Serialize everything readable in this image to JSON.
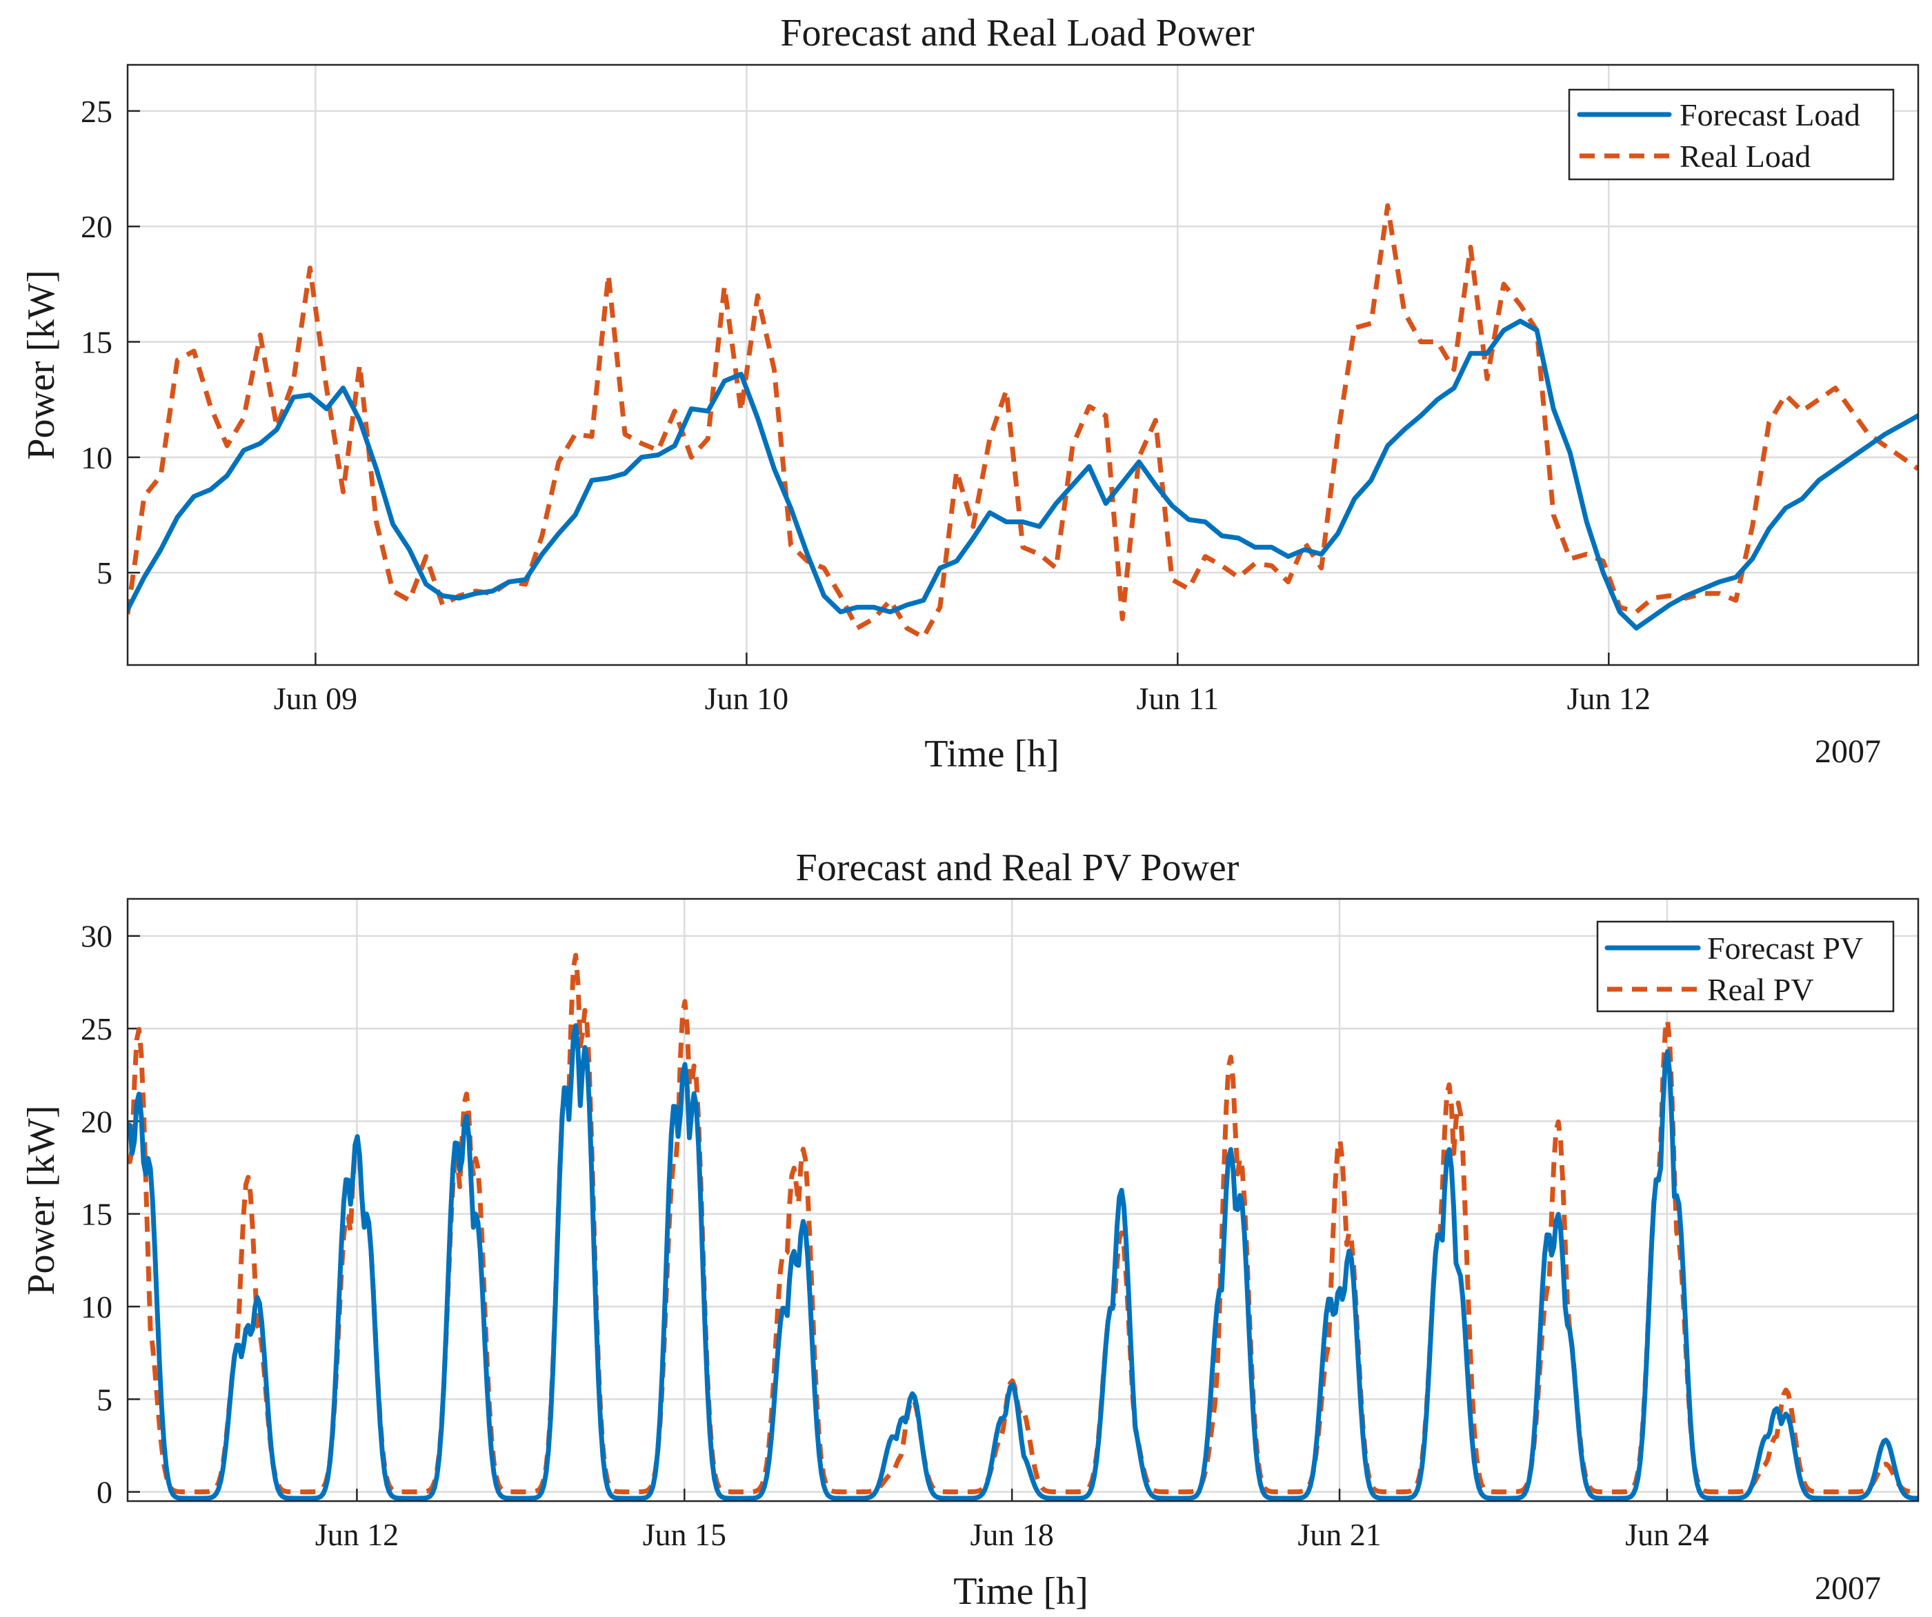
{
  "colors": {
    "forecast": "#0072BD",
    "real": "#D95319"
  },
  "chart_data": [
    {
      "type": "line",
      "title": "Forecast and Real Load Power",
      "xlabel": "Time [h]",
      "ylabel": "Power [kW]",
      "year_label": "2007",
      "xlim": [
        -17,
        145
      ],
      "ylim": [
        1,
        27
      ],
      "x_unit": "hours from Jun 09 00:00",
      "x_ticks": [
        0,
        39,
        78,
        117
      ],
      "x_tick_labels": [
        "Jun 09",
        "Jun 10",
        "Jun 11",
        "Jun 12"
      ],
      "y_ticks": [
        5,
        10,
        15,
        20,
        25
      ],
      "y_tick_labels": [
        "5",
        "10",
        "15",
        "20",
        "25"
      ],
      "grid": true,
      "legend": {
        "position": "top-right",
        "entries": [
          "Forecast Load",
          "Real Load"
        ]
      },
      "series": [
        {
          "name": "Forecast Load",
          "style": "solid",
          "x": [
            -17,
            -15.5,
            -14,
            -12.5,
            -11,
            -9.5,
            -8,
            -6.5,
            -5,
            -3.5,
            -2,
            -0.5,
            1,
            2.5,
            4,
            5.5,
            7,
            8.5,
            10,
            11.5,
            13,
            14.5,
            16,
            17.5,
            19,
            20.5,
            22,
            23.5,
            25,
            26.5,
            28,
            29.5,
            31,
            32.5,
            34,
            35.5,
            37,
            38.5,
            40,
            41.5,
            43,
            44.5,
            46,
            47.5,
            49,
            50.5,
            52,
            53.5,
            55,
            56.5,
            58,
            59.5,
            61,
            62.5,
            64,
            65.5,
            67,
            68.5,
            70,
            71.5,
            73,
            74.5,
            76,
            77.5,
            79,
            80.5,
            82,
            83.5,
            85,
            86.5,
            88,
            89.5,
            91,
            92.5,
            94,
            95.5,
            97,
            98.5,
            100,
            101.5,
            103,
            104.5,
            106,
            107.5,
            109,
            110.5,
            112,
            113.5,
            115,
            116.5,
            118,
            119.5,
            121,
            122.5,
            124,
            125.5,
            127,
            128.5,
            130,
            131.5,
            133,
            134.5,
            136,
            137.5,
            139,
            140.5,
            142,
            143.5,
            145
          ],
          "y": [
            3.4,
            4.8,
            6.0,
            7.4,
            8.3,
            8.6,
            9.2,
            10.3,
            10.6,
            11.2,
            12.6,
            12.7,
            12.1,
            13.0,
            11.6,
            9.5,
            7.1,
            6.0,
            4.5,
            4.0,
            3.9,
            4.1,
            4.2,
            4.6,
            4.7,
            5.8,
            6.7,
            7.5,
            9.0,
            9.1,
            9.3,
            10.0,
            10.1,
            10.5,
            12.1,
            12.0,
            13.3,
            13.6,
            11.7,
            9.5,
            7.8,
            5.8,
            4.0,
            3.3,
            3.5,
            3.5,
            3.3,
            3.6,
            3.8,
            5.2,
            5.5,
            6.5,
            7.6,
            7.2,
            7.2,
            7.0,
            8.0,
            8.8,
            9.6,
            8.0,
            8.9,
            9.8,
            8.8,
            7.9,
            7.3,
            7.2,
            6.6,
            6.5,
            6.1,
            6.1,
            5.7,
            6.0,
            5.8,
            6.7,
            8.2,
            9.0,
            10.5,
            11.2,
            11.8,
            12.5,
            13.0,
            14.5,
            14.5,
            15.5,
            15.9,
            15.5,
            12.1,
            10.2,
            7.2,
            5.0,
            3.3,
            2.6,
            3.1,
            3.6,
            4.0,
            4.3,
            4.6,
            4.8,
            5.6,
            6.9,
            7.8,
            8.2,
            9.0,
            9.5,
            10.0,
            10.5,
            11.0,
            11.4,
            11.8
          ]
        },
        {
          "name": "Real Load",
          "style": "dashed",
          "x": [
            -17,
            -15.5,
            -14,
            -12.5,
            -11,
            -9.5,
            -8,
            -6.5,
            -5,
            -3.5,
            -2,
            -0.5,
            1,
            2.5,
            4,
            5.5,
            7,
            8.5,
            10,
            11.5,
            13,
            14.5,
            16,
            17.5,
            19,
            20.5,
            22,
            23.5,
            25,
            26.5,
            28,
            29.5,
            31,
            32.5,
            34,
            35.5,
            37,
            38.5,
            40,
            41.5,
            43,
            44.5,
            46,
            47.5,
            49,
            50.5,
            52,
            53.5,
            55,
            56.5,
            58,
            59.5,
            61,
            62.5,
            64,
            65.5,
            67,
            68.5,
            70,
            71.5,
            73,
            74.5,
            76,
            77.5,
            79,
            80.5,
            82,
            83.5,
            85,
            86.5,
            88,
            89.5,
            91,
            92.5,
            94,
            95.5,
            97,
            98.5,
            100,
            101.5,
            103,
            104.5,
            106,
            107.5,
            109,
            110.5,
            112,
            113.5,
            115,
            116.5,
            118,
            119.5,
            121,
            122.5,
            124,
            125.5,
            127,
            128.5,
            130,
            131.5,
            133,
            134.5,
            136,
            137.5,
            139,
            140.5,
            142,
            143.5,
            145
          ],
          "y": [
            3.2,
            8.3,
            9.2,
            14.2,
            14.6,
            12.2,
            10.5,
            11.7,
            15.3,
            11.3,
            13.3,
            18.2,
            13.0,
            8.5,
            14.0,
            7.2,
            4.2,
            3.8,
            5.7,
            3.6,
            4.0,
            4.2,
            4.1,
            4.6,
            4.5,
            6.6,
            9.8,
            11.0,
            10.9,
            17.9,
            11.0,
            10.6,
            10.3,
            12.0,
            10.0,
            10.8,
            17.4,
            12.0,
            17.0,
            13.8,
            6.2,
            5.5,
            5.2,
            4.0,
            2.6,
            3.0,
            3.8,
            2.6,
            2.2,
            3.5,
            9.4,
            7.0,
            10.8,
            12.9,
            6.1,
            5.8,
            5.2,
            10.5,
            12.2,
            11.8,
            3.0,
            10.0,
            11.6,
            4.7,
            4.3,
            5.7,
            5.3,
            4.8,
            5.4,
            5.3,
            4.6,
            6.3,
            5.2,
            11.0,
            15.6,
            15.8,
            20.9,
            16.3,
            15.0,
            15.0,
            13.8,
            19.1,
            13.4,
            17.5,
            16.6,
            15.5,
            7.5,
            5.6,
            5.8,
            5.5,
            3.5,
            3.3,
            3.9,
            4.0,
            3.9,
            4.1,
            4.1,
            3.8,
            7.0,
            11.5,
            12.7,
            12.0,
            12.5,
            13.0,
            12.0,
            11.0,
            10.5,
            10.0,
            9.5
          ]
        }
      ]
    },
    {
      "type": "line",
      "title": "Forecast and Real PV Power",
      "xlabel": "Time [h]",
      "ylabel": "Power [kW]",
      "year_label": "2007",
      "xlim": [
        -2.1,
        14.3
      ],
      "ylim": [
        -0.5,
        32
      ],
      "x_unit": "days from Jun 12 00:00",
      "x_ticks": [
        0,
        3,
        6,
        9,
        12
      ],
      "x_tick_labels": [
        "Jun 12",
        "Jun 15",
        "Jun 18",
        "Jun 21",
        "Jun 24"
      ],
      "y_ticks": [
        0,
        5,
        10,
        15,
        20,
        25,
        30
      ],
      "y_tick_labels": [
        "0",
        "5",
        "10",
        "15",
        "20",
        "25",
        "30"
      ],
      "grid": true,
      "legend": {
        "position": "top-right",
        "entries": [
          "Forecast PV",
          "Real PV"
        ]
      },
      "peaks": [
        {
          "day": -2,
          "forecast": [
            20,
            21.5,
            18
          ],
          "real": [
            18,
            25,
            9
          ]
        },
        {
          "day": -1,
          "forecast": [
            8,
            9,
            10.5
          ],
          "real": [
            8,
            17,
            9
          ]
        },
        {
          "day": 0,
          "forecast": [
            17,
            19.2,
            15
          ],
          "real": [
            15,
            19,
            15
          ]
        },
        {
          "day": 1,
          "forecast": [
            19,
            20.3,
            15
          ],
          "real": [
            18,
            21.5,
            18
          ]
        },
        {
          "day": 2,
          "forecast": [
            22,
            25.2,
            24
          ],
          "real": [
            22,
            29,
            26
          ]
        },
        {
          "day": 3,
          "forecast": [
            21,
            23.1,
            21.5
          ],
          "real": [
            18,
            26.5,
            23
          ]
        },
        {
          "day": 4,
          "forecast": [
            10,
            13,
            14.6
          ],
          "real": [
            13,
            17.5,
            18.5
          ]
        },
        {
          "day": 5,
          "forecast": [
            3,
            4,
            5.3
          ],
          "real": [
            1,
            2,
            5
          ]
        },
        {
          "day": 6,
          "forecast": [
            4,
            5.8,
            2
          ],
          "real": [
            3,
            6,
            4.5
          ]
        },
        {
          "day": 7,
          "forecast": [
            10,
            16.3,
            4
          ],
          "real": [
            10,
            14,
            4
          ]
        },
        {
          "day": 8,
          "forecast": [
            11,
            18.5,
            16
          ],
          "real": [
            6,
            23.5,
            18
          ]
        },
        {
          "day": 9,
          "forecast": [
            10.5,
            11,
            13
          ],
          "real": [
            8,
            19,
            14
          ]
        },
        {
          "day": 10,
          "forecast": [
            14,
            18.5,
            12
          ],
          "real": [
            14,
            22,
            21
          ]
        },
        {
          "day": 11,
          "forecast": [
            14,
            15,
            9
          ],
          "real": [
            11,
            20,
            9
          ]
        },
        {
          "day": 12,
          "forecast": [
            17,
            23.8,
            16
          ],
          "real": [
            17,
            25.5,
            14
          ]
        },
        {
          "day": 13,
          "forecast": [
            3,
            4.5,
            4.2
          ],
          "real": [
            1.5,
            3,
            5.5
          ]
        },
        {
          "day": 14,
          "forecast": [
            2.8
          ],
          "real": [
            1.5
          ]
        }
      ]
    }
  ]
}
